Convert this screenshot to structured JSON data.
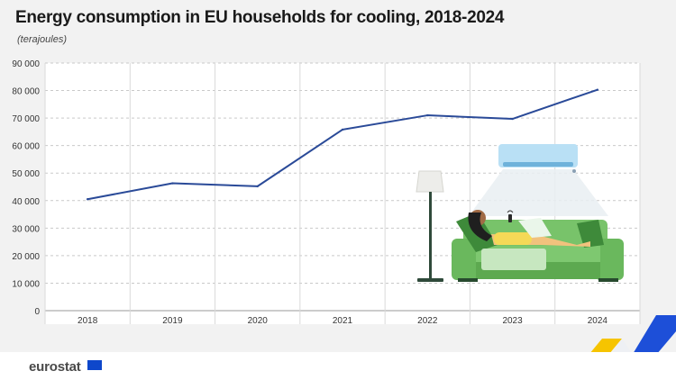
{
  "header": {
    "title": "Energy consumption in EU households for cooling, 2018-2024",
    "subtitle": "(terajoules)"
  },
  "footer": {
    "brand": "eurostat"
  },
  "colors": {
    "line": "#2a4a98",
    "grid": "#c9c9c9",
    "plot_background": "#ffffff",
    "page_background": "#f2f2f2",
    "sofa": "#6fbe62",
    "ac_unit": "#b9e0f5",
    "accent_yellow": "#f6c400",
    "accent_blue": "#1d4fd8"
  },
  "chart_data": {
    "type": "line",
    "title": "Energy consumption in EU households for cooling, 2018-2024",
    "subtitle": "(terajoules)",
    "xlabel": "",
    "ylabel": "",
    "categories": [
      "2018",
      "2019",
      "2020",
      "2021",
      "2022",
      "2023",
      "2024"
    ],
    "series": [
      {
        "values": [
          40500,
          46300,
          45200,
          65800,
          71000,
          69700,
          80300
        ]
      }
    ],
    "ylim": [
      0,
      90000
    ],
    "yticks": [
      0,
      10000,
      20000,
      30000,
      40000,
      50000,
      60000,
      70000,
      80000,
      90000
    ],
    "ytick_labels": [
      "0",
      "10 000",
      "20 000",
      "30 000",
      "40 000",
      "50 000",
      "60 000",
      "70 000",
      "80 000",
      "90 000"
    ],
    "grid": true,
    "legend": "none"
  },
  "illustration": {
    "subject": "person-relaxing-on-sofa-under-air-conditioner",
    "icons": [
      "air-conditioner-icon",
      "floor-lamp-icon",
      "sofa-icon",
      "person-icon",
      "remote-control-icon"
    ]
  }
}
